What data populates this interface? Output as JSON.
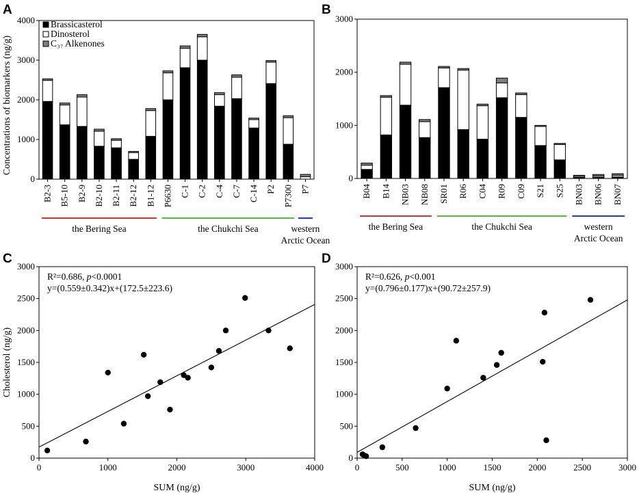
{
  "chart_data": [
    {
      "panel": "A",
      "type": "bar",
      "stacked": true,
      "ylabel": "Concentrations of biomarkers  (ng/g)",
      "ylim": [
        0,
        4000
      ],
      "yticks": [
        0,
        1000,
        2000,
        3000,
        4000
      ],
      "categories": [
        "B2-3",
        "B5-10",
        "B2-9",
        "B2-10",
        "B2-11",
        "B2-12",
        "B1-12",
        "P6630",
        "C-1",
        "C-2",
        "C-4",
        "C-7",
        "C-14",
        "P2",
        "P7300",
        "P7"
      ],
      "series": [
        {
          "name": "Brassicasterol",
          "color": "#000000",
          "values": [
            1960,
            1370,
            1330,
            830,
            790,
            500,
            1080,
            2000,
            2810,
            3000,
            1840,
            2030,
            1290,
            2410,
            880,
            0
          ]
        },
        {
          "name": "Dinosterol",
          "color": "#ffffff",
          "values": [
            530,
            500,
            740,
            380,
            190,
            170,
            650,
            680,
            490,
            590,
            290,
            540,
            210,
            540,
            670,
            60
          ]
        },
        {
          "name": "C37 Alkenones",
          "color": "#7f7f7f",
          "values": [
            40,
            50,
            60,
            50,
            40,
            30,
            50,
            50,
            60,
            60,
            50,
            60,
            40,
            40,
            50,
            60
          ]
        }
      ],
      "legend": {
        "position": "top-left",
        "entries": [
          "Brassicasterol",
          "Dinosterol",
          "C₃₇ Alkenones"
        ]
      },
      "regions": [
        {
          "label": "the Bering Sea",
          "color": "#d9322c",
          "start": 0,
          "end": 6
        },
        {
          "label": "the Chukchi Sea",
          "color": "#4fbf3a",
          "start": 7,
          "end": 14
        },
        {
          "label": "western",
          "label2": "Arctic Ocean",
          "color": "#1f3cc7",
          "start": 15,
          "end": 15
        }
      ]
    },
    {
      "panel": "B",
      "type": "bar",
      "stacked": true,
      "ylim": [
        0,
        3000
      ],
      "yticks": [
        0,
        1000,
        2000,
        3000
      ],
      "categories": [
        "B04",
        "B14",
        "NB03",
        "NB08",
        "SR01",
        "R06",
        "C04",
        "R09",
        "C09",
        "S21",
        "S25",
        "BN03",
        "BN06",
        "BN07"
      ],
      "series": [
        {
          "name": "Brassicasterol",
          "color": "#000000",
          "values": [
            170,
            820,
            1380,
            770,
            1710,
            920,
            740,
            1520,
            1150,
            620,
            350,
            20,
            25,
            30
          ]
        },
        {
          "name": "Dinosterol",
          "color": "#ffffff",
          "values": [
            80,
            710,
            770,
            300,
            370,
            1120,
            630,
            280,
            430,
            360,
            290,
            20,
            25,
            30
          ]
        },
        {
          "name": "C37 Alkenones",
          "color": "#7f7f7f",
          "values": [
            40,
            30,
            40,
            40,
            30,
            30,
            30,
            90,
            30,
            20,
            20,
            20,
            25,
            30
          ]
        }
      ],
      "regions": [
        {
          "label": "the Bering Sea",
          "color": "#d9322c",
          "start": 0,
          "end": 3
        },
        {
          "label": "the Chukchi Sea",
          "color": "#4fbf3a",
          "start": 4,
          "end": 10
        },
        {
          "label": "western",
          "label2": "Arctic Ocean",
          "color": "#1f3cc7",
          "start": 11,
          "end": 13
        }
      ]
    },
    {
      "panel": "C",
      "type": "scatter",
      "xlabel": "SUM (ng/g)",
      "ylabel": "Cholesterol (ng/g)",
      "xlim": [
        0,
        4000
      ],
      "ylim": [
        0,
        3000
      ],
      "xticks": [
        0,
        1000,
        2000,
        3000,
        4000
      ],
      "yticks": [
        0,
        500,
        1000,
        1500,
        2000,
        2500,
        3000
      ],
      "points": [
        [
          120,
          120
        ],
        [
          680,
          260
        ],
        [
          1000,
          1340
        ],
        [
          1230,
          540
        ],
        [
          1520,
          1620
        ],
        [
          1580,
          970
        ],
        [
          1760,
          1190
        ],
        [
          1900,
          760
        ],
        [
          2100,
          1300
        ],
        [
          2160,
          1260
        ],
        [
          2500,
          1420
        ],
        [
          2610,
          1680
        ],
        [
          2710,
          2000
        ],
        [
          2990,
          2510
        ],
        [
          3330,
          2000
        ],
        [
          3640,
          1720
        ]
      ],
      "fit": {
        "slope": 0.559,
        "intercept": 172.5
      },
      "annotation_r2_prefix": "R²=0.686, ",
      "annotation_p_italic": "p",
      "annotation_p_rest": "<0.0001",
      "annotation_eq": "y=(0.559±0.342)x+(172.5±223.6)"
    },
    {
      "panel": "D",
      "type": "scatter",
      "xlabel": "SUM (ng/g)",
      "xlim": [
        0,
        3000
      ],
      "ylim": [
        0,
        3000
      ],
      "xticks": [
        0,
        500,
        1000,
        1500,
        2000,
        2500,
        3000
      ],
      "yticks": [
        0,
        500,
        1000,
        1500,
        2000,
        2500,
        3000
      ],
      "points": [
        [
          60,
          60
        ],
        [
          80,
          40
        ],
        [
          100,
          30
        ],
        [
          280,
          170
        ],
        [
          650,
          470
        ],
        [
          1000,
          1090
        ],
        [
          1100,
          1840
        ],
        [
          1400,
          1260
        ],
        [
          1550,
          1460
        ],
        [
          1600,
          1650
        ],
        [
          2060,
          1510
        ],
        [
          2080,
          2280
        ],
        [
          2100,
          280
        ],
        [
          2590,
          2480
        ]
      ],
      "fit": {
        "slope": 0.796,
        "intercept": 90.72
      },
      "annotation_r2_prefix": "R²=0.626, ",
      "annotation_p_italic": "p",
      "annotation_p_rest": "<0.001",
      "annotation_eq": "y=(0.796±0.177)x+(90.72±257.9)"
    }
  ]
}
